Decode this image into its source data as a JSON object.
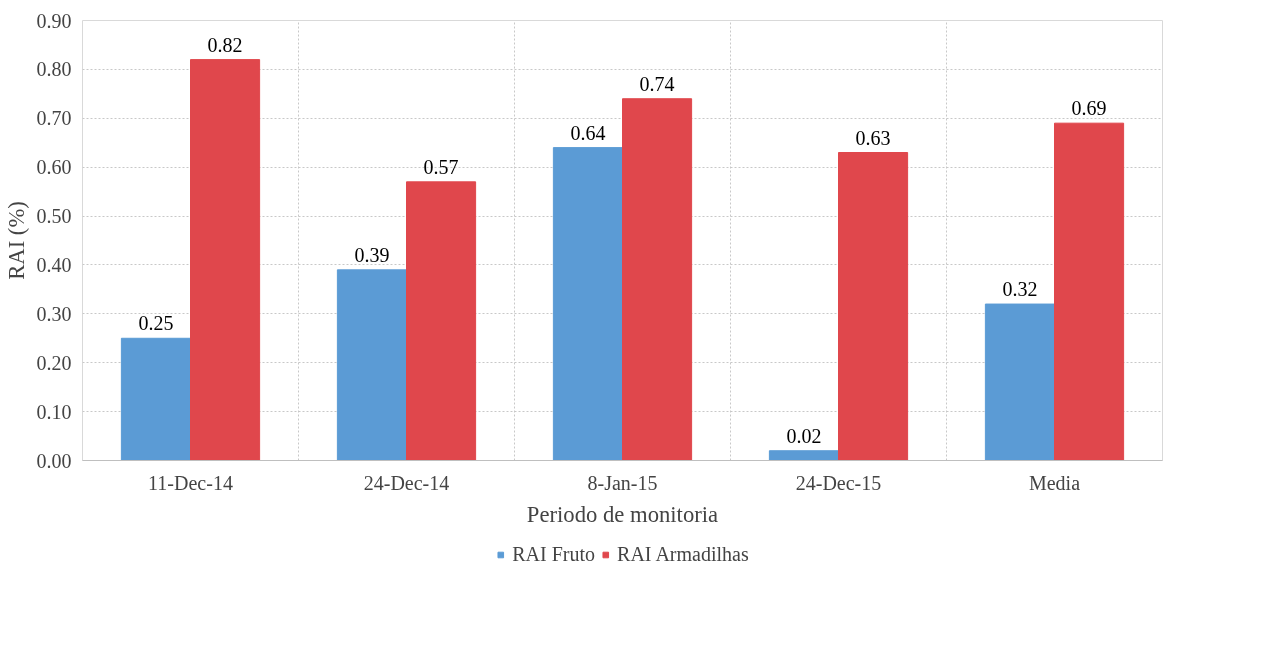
{
  "chart_data": {
    "type": "bar",
    "xlabel": "Periodo de monitoria",
    "ylabel": "RAI (%)",
    "categories": [
      "11-Dec-14",
      "24-Dec-14",
      "8-Jan-15",
      "24-Dec-15",
      "Media"
    ],
    "series": [
      {
        "name": "RAI Fruto",
        "color": "#5b9bd5",
        "values": [
          0.25,
          0.39,
          0.64,
          0.02,
          0.32
        ]
      },
      {
        "name": "RAI Armadilhas",
        "color": "#e0474c",
        "values": [
          0.82,
          0.57,
          0.74,
          0.63,
          0.69
        ]
      }
    ],
    "ylim": [
      0,
      0.9
    ],
    "yticks": [
      {
        "value": 0,
        "label": "0.00"
      },
      {
        "value": 0.1,
        "label": "0.10"
      },
      {
        "value": 0.2,
        "label": "0.20"
      },
      {
        "value": 0.3,
        "label": "0.30"
      },
      {
        "value": 0.4,
        "label": "0.40"
      },
      {
        "value": 0.5,
        "label": "0.50"
      },
      {
        "value": 0.6,
        "label": "0.60"
      },
      {
        "value": 0.7,
        "label": "0.70"
      },
      {
        "value": 0.8,
        "label": "0.80"
      },
      {
        "value": 0.9,
        "label": "0.90"
      }
    ],
    "grid": true,
    "legend": "bottom",
    "data_labels": true
  }
}
